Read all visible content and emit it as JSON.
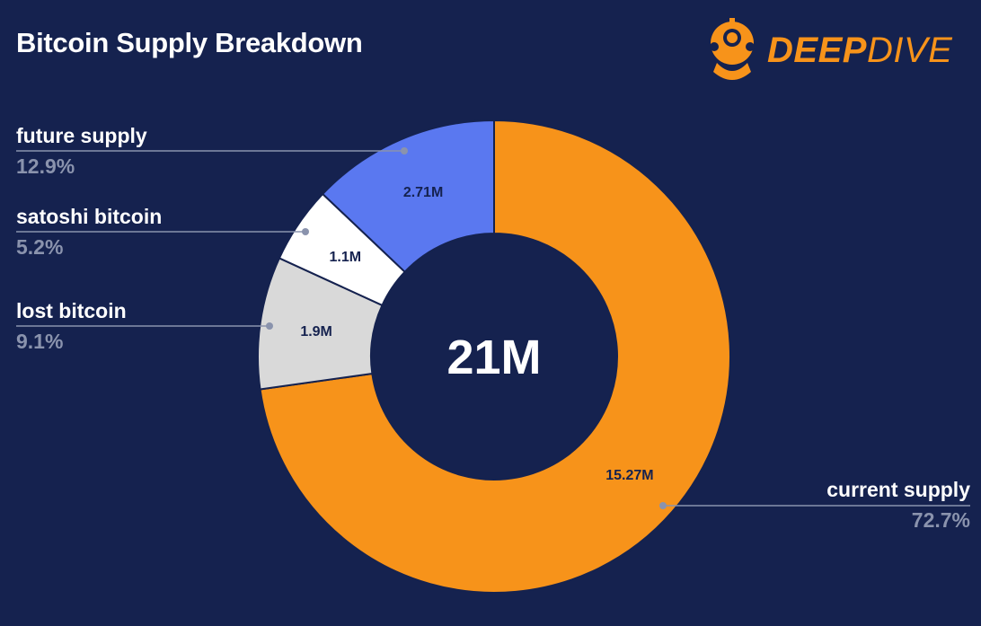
{
  "title": "Bitcoin Supply Breakdown",
  "logo": {
    "word_1": "DEEP",
    "word_2": "DIVE",
    "icon": "diver-helmet-icon"
  },
  "colors": {
    "background": "#15224f",
    "current_supply": "#f7931a",
    "lost_bitcoin": "#d9d9d9",
    "satoshi_bitcoin": "#ffffff",
    "future_supply": "#5a78f0",
    "leader": "#8a93ad"
  },
  "chart_data": {
    "type": "pie",
    "style": "donut",
    "title": "Bitcoin Supply Breakdown",
    "center_label": "21M",
    "slices": [
      {
        "name": "current supply",
        "value": 15.27,
        "value_label": "15.27M",
        "percent": "72.7%",
        "color": "#f7931a"
      },
      {
        "name": "lost bitcoin",
        "value": 1.9,
        "value_label": "1.9M",
        "percent": "9.1%",
        "color": "#d9d9d9"
      },
      {
        "name": "satoshi bitcoin",
        "value": 1.1,
        "value_label": "1.1M",
        "percent": "5.2%",
        "color": "#ffffff"
      },
      {
        "name": "future supply",
        "value": 2.71,
        "value_label": "2.71M",
        "percent": "12.9%",
        "color": "#5a78f0"
      }
    ]
  }
}
